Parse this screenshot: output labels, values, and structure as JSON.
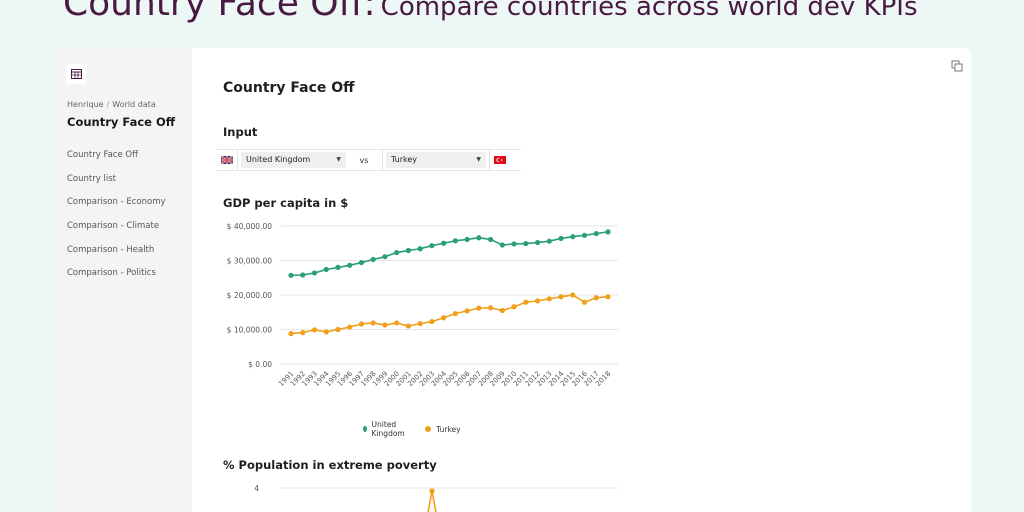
{
  "hero": {
    "title": "Country Face Off:",
    "subtitle": "Compare countries across world dev KPIs"
  },
  "sidebar": {
    "breadcrumb": [
      "Henrique",
      "World data"
    ],
    "title": "Country Face Off",
    "items": [
      {
        "label": "Country Face Off"
      },
      {
        "label": "Country list"
      },
      {
        "label": "Comparison - Economy"
      },
      {
        "label": "Comparison - Climate"
      },
      {
        "label": "Comparison - Health"
      },
      {
        "label": "Comparison - Politics"
      }
    ]
  },
  "main": {
    "title": "Country Face Off",
    "input_heading": "Input",
    "country_a": "United Kingdom",
    "vs_label": "vs",
    "country_b": "Turkey",
    "gdp_heading": "GDP per capita in $",
    "poverty_heading": "% Population in extreme poverty"
  },
  "colors": {
    "uk": "#2a9d7c",
    "turkey": "#f0a01a",
    "accent": "#4a1942"
  },
  "chart_data": [
    {
      "type": "line",
      "title": "GDP per capita in $",
      "x": [
        "1991",
        "1992",
        "1993",
        "1994",
        "1995",
        "1996",
        "1997",
        "1998",
        "1999",
        "2000",
        "2001",
        "2002",
        "2003",
        "2004",
        "2005",
        "2006",
        "2007",
        "2008",
        "2009",
        "2010",
        "2011",
        "2012",
        "2013",
        "2014",
        "2015",
        "2016",
        "2017",
        "2018"
      ],
      "yticks": [
        "$ 0.00",
        "$ 10,000.00",
        "$ 20,000.00",
        "$ 30,000.00",
        "$ 40,000.00"
      ],
      "ylim": [
        0,
        40000
      ],
      "grid": true,
      "legend": "bottom",
      "series": [
        {
          "name": "United Kingdom",
          "color": "#2a9d7c",
          "values": [
            25700,
            25800,
            26400,
            27400,
            28000,
            28600,
            29400,
            30300,
            31100,
            32300,
            32900,
            33400,
            34300,
            35000,
            35700,
            36100,
            36600,
            36100,
            34500,
            34800,
            34900,
            35200,
            35600,
            36400,
            36900,
            37300,
            37800,
            38300
          ]
        },
        {
          "name": "Turkey",
          "color": "#f0a01a",
          "values": [
            8800,
            9100,
            9900,
            9300,
            10000,
            10700,
            11600,
            11900,
            11300,
            11900,
            11000,
            11700,
            12300,
            13400,
            14600,
            15400,
            16200,
            16300,
            15500,
            16600,
            17900,
            18300,
            18900,
            19500,
            20000,
            17900,
            19200,
            19500
          ]
        }
      ]
    },
    {
      "type": "line",
      "title": "% Population in extreme poverty",
      "yticks": [
        "4"
      ],
      "ylim": [
        0,
        4
      ],
      "series": [
        {
          "name": "Turkey",
          "color": "#f0a01a",
          "values": [
            3.8
          ]
        }
      ]
    }
  ]
}
